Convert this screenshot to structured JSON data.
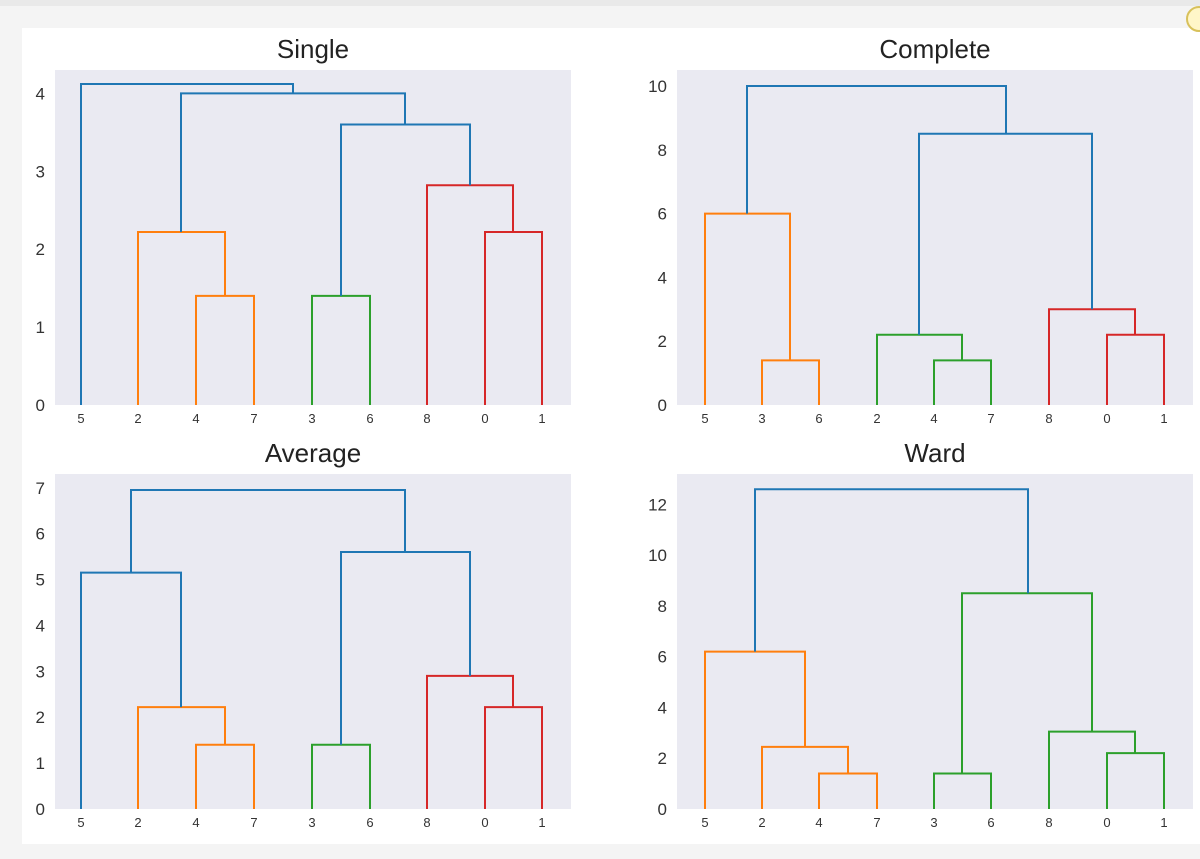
{
  "colors": {
    "panel_bg": "#eaeaf2",
    "blue": "#1f77b4",
    "orange": "#ff7f0e",
    "green": "#2ca02c",
    "red": "#d62728"
  },
  "chart_data": [
    {
      "type": "dendrogram",
      "title": "Single",
      "ylim": [
        0,
        4.3
      ],
      "yticks": [
        0,
        1,
        2,
        3,
        4
      ],
      "leaves": [
        "5",
        "2",
        "4",
        "7",
        "3",
        "6",
        "8",
        "0",
        "1"
      ],
      "links": [
        {
          "color": "orange",
          "left": [
            196,
            0
          ],
          "right": [
            254,
            0
          ],
          "height": 1.4
        },
        {
          "color": "orange",
          "left": [
            138,
            0
          ],
          "right": [
            225,
            1.4
          ],
          "height": 2.22
        },
        {
          "color": "green",
          "left": [
            312,
            0
          ],
          "right": [
            370,
            0
          ],
          "height": 1.4
        },
        {
          "color": "red",
          "left": [
            485,
            0
          ],
          "right": [
            542,
            0
          ],
          "height": 2.22
        },
        {
          "color": "red",
          "left": [
            427,
            0
          ],
          "right": [
            513,
            2.22
          ],
          "height": 2.82
        },
        {
          "color": "blue",
          "left": [
            341,
            1.4
          ],
          "right": [
            470,
            2.82
          ],
          "height": 3.6
        },
        {
          "color": "blue",
          "left": [
            181,
            2.22
          ],
          "right": [
            405,
            3.6
          ],
          "height": 4.0
        },
        {
          "color": "blue",
          "left": [
            81,
            0
          ],
          "right": [
            293,
            4.0
          ],
          "height": 4.12
        }
      ]
    },
    {
      "type": "dendrogram",
      "title": "Complete",
      "ylim": [
        0,
        10.5
      ],
      "yticks": [
        0,
        2,
        4,
        6,
        8,
        10
      ],
      "leaves": [
        "5",
        "3",
        "6",
        "2",
        "4",
        "7",
        "8",
        "0",
        "1"
      ],
      "links": [
        {
          "color": "orange",
          "left": [
            762,
            0
          ],
          "right": [
            819,
            0
          ],
          "height": 1.4
        },
        {
          "color": "orange",
          "left": [
            705,
            0
          ],
          "right": [
            790,
            1.4
          ],
          "height": 6.0
        },
        {
          "color": "green",
          "left": [
            934,
            0
          ],
          "right": [
            991,
            0
          ],
          "height": 1.4
        },
        {
          "color": "green",
          "left": [
            877,
            0
          ],
          "right": [
            962,
            1.4
          ],
          "height": 2.2
        },
        {
          "color": "red",
          "left": [
            1107,
            0
          ],
          "right": [
            1164,
            0
          ],
          "height": 2.2
        },
        {
          "color": "red",
          "left": [
            1049,
            0
          ],
          "right": [
            1135,
            2.2
          ],
          "height": 3.0
        },
        {
          "color": "blue",
          "left": [
            919,
            2.2
          ],
          "right": [
            1092,
            3.0
          ],
          "height": 8.5
        },
        {
          "color": "blue",
          "left": [
            747,
            6.0
          ],
          "right": [
            1006,
            8.5
          ],
          "height": 10.0
        }
      ]
    },
    {
      "type": "dendrogram",
      "title": "Average",
      "ylim": [
        0,
        7.3
      ],
      "yticks": [
        0,
        1,
        2,
        3,
        4,
        5,
        6,
        7
      ],
      "leaves": [
        "5",
        "2",
        "4",
        "7",
        "3",
        "6",
        "8",
        "0",
        "1"
      ],
      "links": [
        {
          "color": "orange",
          "left": [
            196,
            0
          ],
          "right": [
            254,
            0
          ],
          "height": 1.4
        },
        {
          "color": "orange",
          "left": [
            138,
            0
          ],
          "right": [
            225,
            1.4
          ],
          "height": 2.22
        },
        {
          "color": "green",
          "left": [
            312,
            0
          ],
          "right": [
            370,
            0
          ],
          "height": 1.4
        },
        {
          "color": "red",
          "left": [
            485,
            0
          ],
          "right": [
            542,
            0
          ],
          "height": 2.22
        },
        {
          "color": "red",
          "left": [
            427,
            0
          ],
          "right": [
            513,
            2.22
          ],
          "height": 2.9
        },
        {
          "color": "blue",
          "left": [
            81,
            0
          ],
          "right": [
            181,
            2.22
          ],
          "height": 5.15
        },
        {
          "color": "blue",
          "left": [
            341,
            1.4
          ],
          "right": [
            470,
            2.9
          ],
          "height": 5.6
        },
        {
          "color": "blue",
          "left": [
            131,
            5.15
          ],
          "right": [
            405,
            5.6
          ],
          "height": 6.95
        }
      ]
    },
    {
      "type": "dendrogram",
      "title": "Ward",
      "ylim": [
        0,
        13.2
      ],
      "yticks": [
        0,
        2,
        4,
        6,
        8,
        10,
        12
      ],
      "leaves": [
        "5",
        "2",
        "4",
        "7",
        "3",
        "6",
        "8",
        "0",
        "1"
      ],
      "links": [
        {
          "color": "orange",
          "left": [
            819,
            0
          ],
          "right": [
            877,
            0
          ],
          "height": 1.4
        },
        {
          "color": "orange",
          "left": [
            762,
            0
          ],
          "right": [
            848,
            1.4
          ],
          "height": 2.45
        },
        {
          "color": "orange",
          "left": [
            705,
            0
          ],
          "right": [
            805,
            2.45
          ],
          "height": 6.2
        },
        {
          "color": "green",
          "left": [
            934,
            0
          ],
          "right": [
            991,
            0
          ],
          "height": 1.4
        },
        {
          "color": "green",
          "left": [
            1107,
            0
          ],
          "right": [
            1164,
            0
          ],
          "height": 2.2
        },
        {
          "color": "green",
          "left": [
            1049,
            0
          ],
          "right": [
            1135,
            2.2
          ],
          "height": 3.05
        },
        {
          "color": "green",
          "left": [
            962,
            1.4
          ],
          "right": [
            1092,
            3.05
          ],
          "height": 8.5
        },
        {
          "color": "blue",
          "left": [
            755,
            6.2
          ],
          "right": [
            1028,
            8.5
          ],
          "height": 12.6
        }
      ]
    }
  ]
}
